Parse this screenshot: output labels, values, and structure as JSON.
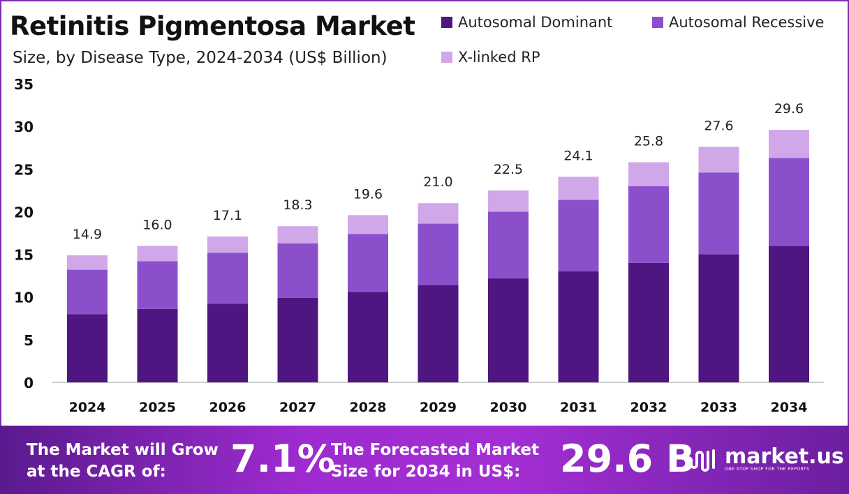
{
  "header": {
    "title": "Retinitis Pigmentosa Market",
    "subtitle": "Size, by Disease Type, 2024-2034 (US$ Billion)"
  },
  "chart_data": {
    "type": "bar",
    "stacked": true,
    "categories": [
      "2024",
      "2025",
      "2026",
      "2027",
      "2028",
      "2029",
      "2030",
      "2031",
      "2032",
      "2033",
      "2034"
    ],
    "series": [
      {
        "name": "Autosomal Dominant",
        "color": "#4f1580",
        "values": [
          8.0,
          8.6,
          9.2,
          9.9,
          10.6,
          11.4,
          12.2,
          13.0,
          14.0,
          15.0,
          16.0
        ]
      },
      {
        "name": "Autosomal Recessive",
        "color": "#8b4fcc",
        "values": [
          5.2,
          5.6,
          6.0,
          6.4,
          6.8,
          7.2,
          7.8,
          8.4,
          9.0,
          9.6,
          10.3
        ]
      },
      {
        "name": "X-linked RP",
        "color": "#d0a8ea",
        "values": [
          1.7,
          1.8,
          1.9,
          2.0,
          2.2,
          2.4,
          2.5,
          2.7,
          2.8,
          3.0,
          3.3
        ]
      }
    ],
    "totals": [
      "14.9",
      "16.0",
      "17.1",
      "18.3",
      "19.6",
      "21.0",
      "22.5",
      "24.1",
      "25.8",
      "27.6",
      "29.6"
    ],
    "ylim": [
      0,
      35
    ],
    "yticks": [
      "0",
      "5",
      "10",
      "15",
      "20",
      "25",
      "30",
      "35"
    ],
    "grid": false,
    "legend_position": "top-right"
  },
  "footer": {
    "cagr_label_1": "The Market will Grow",
    "cagr_label_2": "at the CAGR of:",
    "cagr_value": "7.1%",
    "forecast_label_1": "The Forecasted Market",
    "forecast_label_2": "Size for 2034 in US$:",
    "forecast_value": "29.6 B",
    "logo_text": "market.us",
    "logo_tagline": "ONE STOP SHOP FOR THE REPORTS"
  }
}
